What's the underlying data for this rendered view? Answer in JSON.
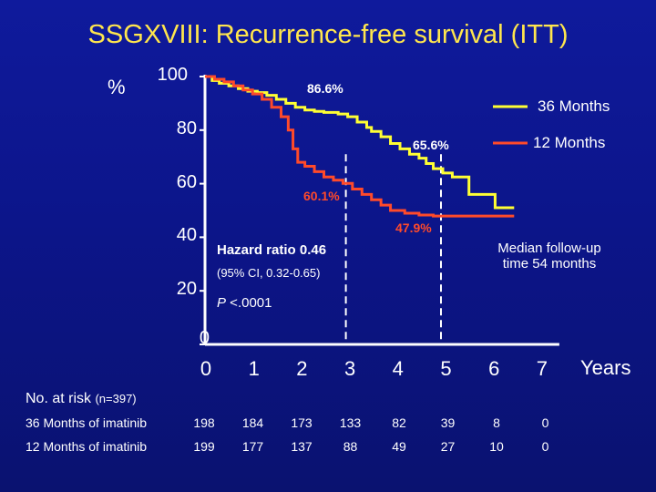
{
  "title": "SSGXVIII: Recurrence-free survival (ITT)",
  "colors": {
    "series_36": "#ffff33",
    "series_12": "#ff4a2a",
    "axis": "#ffffff",
    "dashed": "#ffffff"
  },
  "chart_data": {
    "type": "line",
    "subtype": "kaplan-meier step",
    "title": "SSGXVIII: Recurrence-free survival (ITT)",
    "ylabel": "%",
    "xlabel": "Years",
    "ylim": [
      0,
      100
    ],
    "xlim": [
      0,
      7.5
    ],
    "yticks": [
      "100",
      "80",
      "60",
      "40",
      "20",
      "0"
    ],
    "ytick_values": [
      100,
      80,
      60,
      40,
      20,
      0
    ],
    "xticks": [
      "0",
      "1",
      "2",
      "3",
      "4",
      "5",
      "6",
      "7"
    ],
    "xtick_values": [
      0,
      1,
      2,
      3,
      4,
      5,
      6,
      7
    ],
    "series": [
      {
        "name": "36 Months",
        "color": "#ffff33",
        "points": [
          [
            0,
            100
          ],
          [
            0.15,
            98.5
          ],
          [
            0.3,
            97.5
          ],
          [
            0.5,
            96.5
          ],
          [
            0.7,
            95.5
          ],
          [
            0.9,
            94.5
          ],
          [
            1.1,
            94
          ],
          [
            1.3,
            93
          ],
          [
            1.5,
            91.5
          ],
          [
            1.7,
            90
          ],
          [
            1.9,
            88.5
          ],
          [
            2.1,
            87.5
          ],
          [
            2.3,
            87
          ],
          [
            2.5,
            86.6
          ],
          [
            2.8,
            86
          ],
          [
            3.0,
            85
          ],
          [
            3.2,
            83
          ],
          [
            3.4,
            81
          ],
          [
            3.5,
            79.5
          ],
          [
            3.7,
            77.5
          ],
          [
            3.9,
            75
          ],
          [
            4.1,
            73
          ],
          [
            4.3,
            71
          ],
          [
            4.5,
            69.5
          ],
          [
            4.65,
            67.5
          ],
          [
            4.8,
            65.6
          ],
          [
            5.0,
            64
          ],
          [
            5.2,
            62.5
          ],
          [
            5.45,
            62.5
          ],
          [
            5.55,
            56
          ],
          [
            6.0,
            56
          ],
          [
            6.1,
            51
          ],
          [
            6.5,
            51
          ]
        ]
      },
      {
        "name": "12 Months",
        "color": "#ff4a2a",
        "points": [
          [
            0,
            100
          ],
          [
            0.2,
            99
          ],
          [
            0.4,
            98
          ],
          [
            0.6,
            96.5
          ],
          [
            0.8,
            95
          ],
          [
            1.0,
            93.5
          ],
          [
            1.2,
            91.5
          ],
          [
            1.4,
            88.5
          ],
          [
            1.6,
            85
          ],
          [
            1.75,
            80
          ],
          [
            1.85,
            73
          ],
          [
            1.95,
            68
          ],
          [
            2.1,
            66.5
          ],
          [
            2.3,
            64.5
          ],
          [
            2.5,
            62.5
          ],
          [
            2.7,
            61.3
          ],
          [
            2.9,
            60.1
          ],
          [
            3.1,
            58
          ],
          [
            3.3,
            56
          ],
          [
            3.5,
            54
          ],
          [
            3.7,
            52
          ],
          [
            3.9,
            50
          ],
          [
            4.2,
            49
          ],
          [
            4.5,
            48.3
          ],
          [
            4.8,
            47.9
          ],
          [
            5.4,
            47.9
          ],
          [
            6.5,
            47.9
          ]
        ]
      }
    ],
    "annotations": [
      {
        "text": "86.6%",
        "series": "36 Months",
        "at": [
          2.5,
          86.6
        ]
      },
      {
        "text": "65.6%",
        "series": "36 Months",
        "at": [
          4.8,
          65.6
        ]
      },
      {
        "text": "60.1%",
        "series": "12 Months",
        "at": [
          2.9,
          60.1
        ]
      },
      {
        "text": "47.9%",
        "series": "12 Months",
        "at": [
          4.8,
          47.9
        ]
      }
    ],
    "reference_lines_x": [
      3,
      5
    ],
    "legend": [
      "36 Months",
      "12 Months"
    ],
    "legend_position": "top-right"
  },
  "labels": {
    "y_unit": "%",
    "x_unit": "Years",
    "pct_866": "86.6%",
    "pct_656": "65.6%",
    "pct_601": "60.1%",
    "pct_479": "47.9%",
    "legend_36": "36 Months",
    "legend_12": "12 Months",
    "hazard_ratio": "Hazard ratio 0.46",
    "ci": "(95% CI, 0.32-0.65)",
    "p_prefix": "P",
    "p_value": " <.0001",
    "followup_line1": "Median follow-up",
    "followup_line2": "time 54 months"
  },
  "risk_table": {
    "heading": "No. at risk",
    "n": "(n=397)",
    "rows": [
      {
        "label": "36 Months of imatinib",
        "values": [
          "198",
          "184",
          "173",
          "133",
          "82",
          "39",
          "8",
          "0"
        ]
      },
      {
        "label": "12 Months of imatinib",
        "values": [
          "199",
          "177",
          "137",
          "88",
          "49",
          "27",
          "10",
          "0"
        ]
      }
    ]
  }
}
